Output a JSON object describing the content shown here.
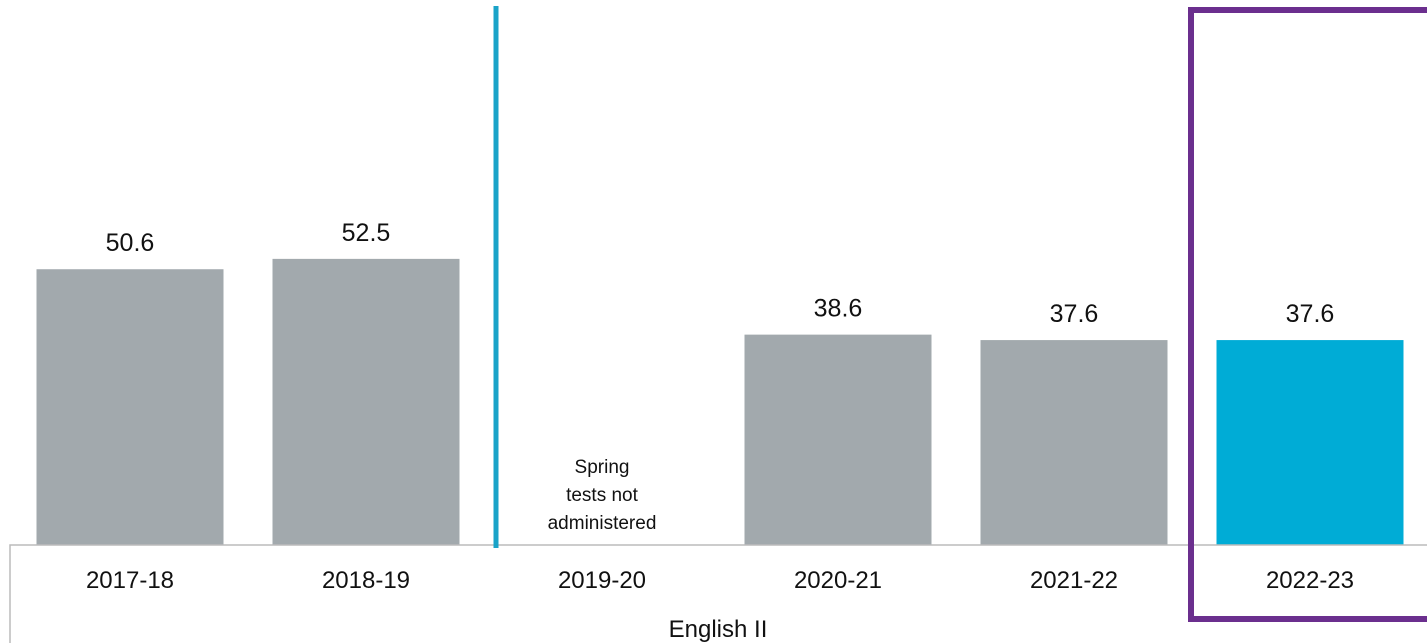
{
  "chart_data": {
    "type": "bar",
    "categories": [
      "2017-18",
      "2018-19",
      "2019-20",
      "2020-21",
      "2021-22",
      "2022-23"
    ],
    "values": [
      50.6,
      52.5,
      null,
      38.6,
      37.6,
      37.6
    ],
    "value_labels": [
      "50.6",
      "52.5",
      "",
      "38.6",
      "37.6",
      "37.6"
    ],
    "xlabel": "English II",
    "ylim": [
      0,
      100
    ],
    "grid": false,
    "legend": "none",
    "annotations": [
      {
        "category": "2019-20",
        "lines": [
          "Spring",
          "tests not",
          "administered"
        ]
      }
    ],
    "highlight_category": "2022-23",
    "colors": {
      "bar": "#a2a9ad",
      "highlight_bar": "#00acd6",
      "divider": "#1aa3c8",
      "highlight_box": "#6b2f8e",
      "axis_box": "#bbbbbb"
    }
  }
}
